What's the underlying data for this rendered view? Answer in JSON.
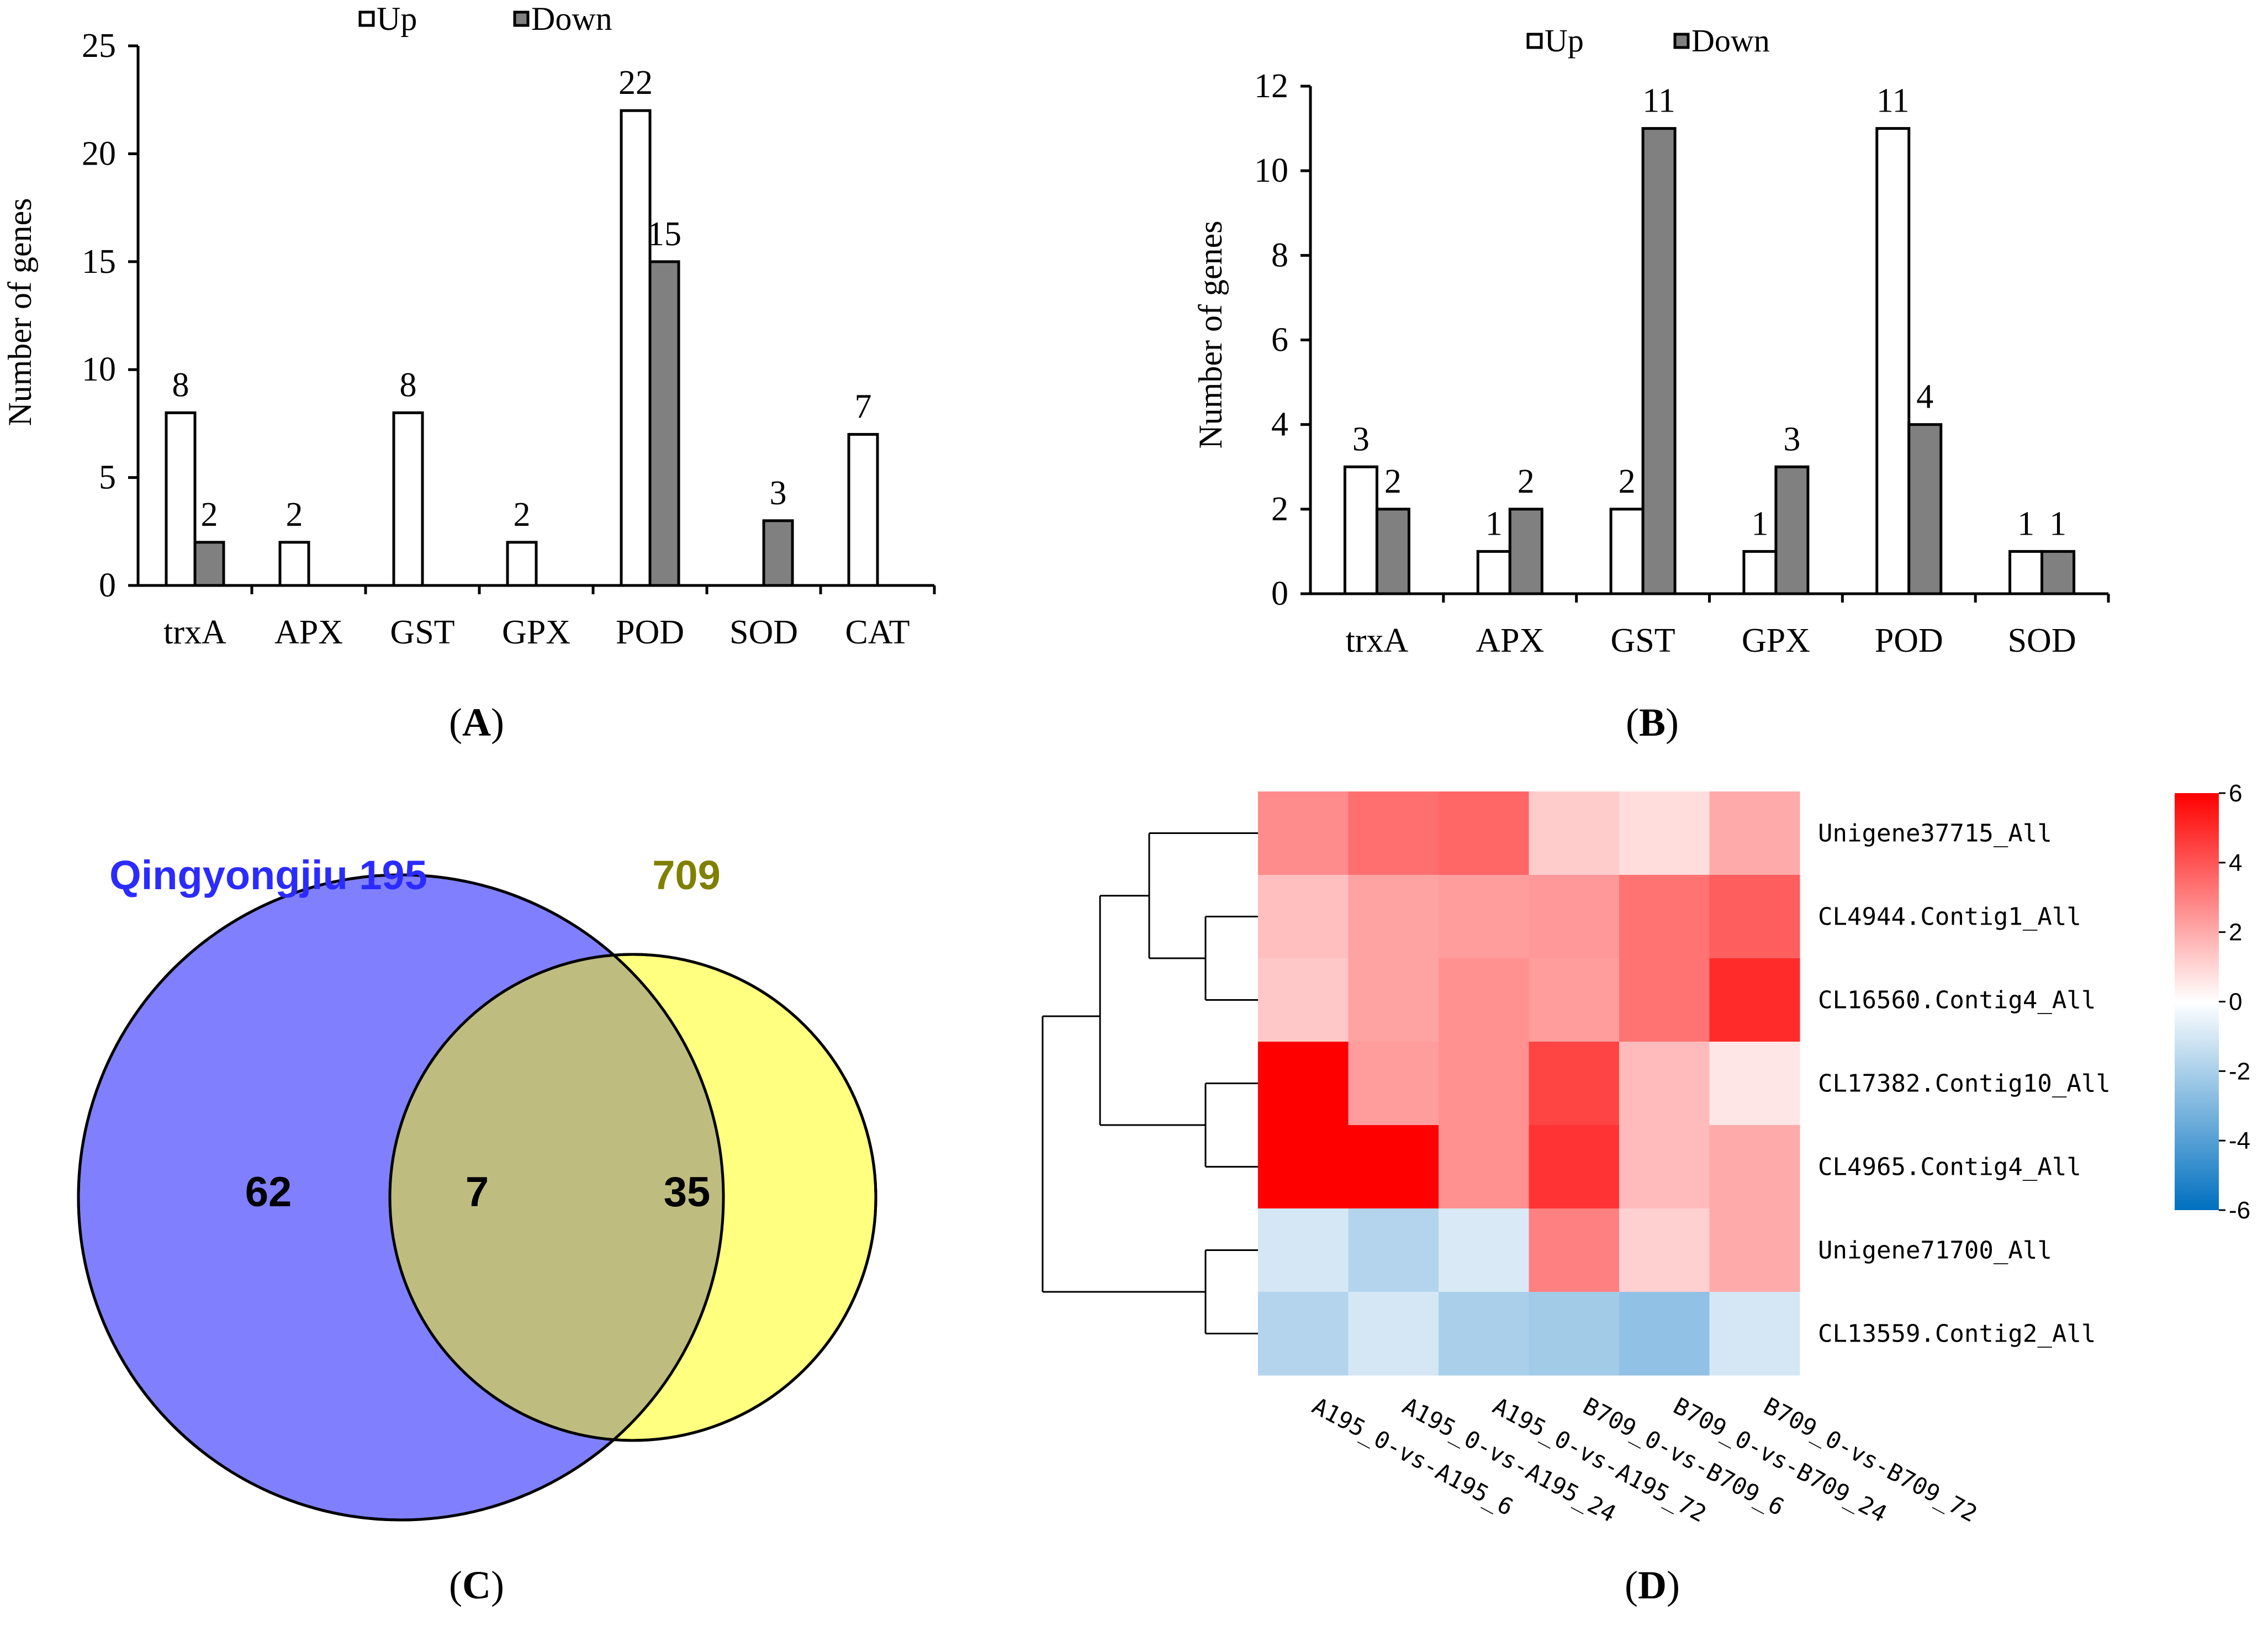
{
  "colors": {
    "up_fill": "#ffffff",
    "down_fill": "#808080",
    "bar_stroke": "#000000",
    "venn_left": "#8080ff",
    "venn_right": "#ffff80",
    "venn_overlap": "#bebd7f",
    "venn_left_title": "#2b2bff",
    "venn_right_title": "#808000",
    "heat_high": "#ff0000",
    "heat_mid": "#ffffff",
    "heat_low": "#0070c0"
  },
  "panels": {
    "A": {
      "label_open": "(",
      "label_letter": "A",
      "label_close": ")"
    },
    "B": {
      "label_open": "(",
      "label_letter": "B",
      "label_close": ")"
    },
    "C": {
      "label_open": "(",
      "label_letter": "C",
      "label_close": ")"
    },
    "D": {
      "label_open": "(",
      "label_letter": "D",
      "label_close": ")"
    }
  },
  "chart_data": [
    {
      "type": "bar",
      "panel": "A",
      "ylabel": "Number of genes",
      "ylim": [
        0,
        25
      ],
      "yticks": [
        0,
        5,
        10,
        15,
        20,
        25
      ],
      "legend": {
        "position": "top",
        "entries": [
          "Up",
          "Down"
        ]
      },
      "categories": [
        "trxA",
        "APX",
        "GST",
        "GPX",
        "POD",
        "SOD",
        "CAT"
      ],
      "series": [
        {
          "name": "Up",
          "values": [
            8,
            2,
            8,
            2,
            22,
            0,
            7
          ]
        },
        {
          "name": "Down",
          "values": [
            2,
            0,
            0,
            0,
            15,
            3,
            0
          ]
        }
      ]
    },
    {
      "type": "bar",
      "panel": "B",
      "ylabel": "Number of genes",
      "ylim": [
        0,
        12
      ],
      "yticks": [
        0,
        2,
        4,
        6,
        8,
        10,
        12
      ],
      "legend": {
        "position": "top",
        "entries": [
          "Up",
          "Down"
        ]
      },
      "categories": [
        "trxA",
        "APX",
        "GST",
        "GPX",
        "POD",
        "SOD"
      ],
      "series": [
        {
          "name": "Up",
          "values": [
            3,
            1,
            2,
            1,
            11,
            1
          ]
        },
        {
          "name": "Down",
          "values": [
            2,
            2,
            11,
            3,
            4,
            1
          ]
        }
      ]
    },
    {
      "type": "venn",
      "panel": "C",
      "sets": [
        {
          "name": "Qingyongjiu 195",
          "only": 62
        },
        {
          "name": "709",
          "only": 35
        }
      ],
      "intersection": 7
    },
    {
      "type": "heatmap",
      "panel": "D",
      "rows": [
        "Unigene37715_All",
        "CL4944.Contig1_All",
        "CL16560.Contig4_All",
        "CL17382.Contig10_All",
        "CL4965.Contig4_All",
        "Unigene71700_All",
        "CL13559.Contig2_All"
      ],
      "columns": [
        "A195_0-vs-A195_6",
        "A195_0-vs-A195_24",
        "A195_0-vs-A195_72",
        "B709_0-vs-B709_6",
        "B709_0-vs-B709_24",
        "B709_0-vs-B709_72"
      ],
      "values": [
        [
          2.7,
          3.4,
          3.6,
          1.2,
          0.8,
          2.0
        ],
        [
          1.5,
          2.2,
          2.3,
          2.4,
          3.3,
          3.8
        ],
        [
          1.3,
          2.2,
          2.6,
          2.3,
          3.3,
          5.0
        ],
        [
          6.0,
          2.3,
          2.6,
          4.4,
          1.6,
          0.6
        ],
        [
          6.0,
          6.0,
          2.6,
          4.8,
          1.6,
          2.0
        ],
        [
          -1.0,
          -1.8,
          -0.9,
          3.0,
          1.1,
          2.0
        ],
        [
          -1.8,
          -1.0,
          -2.0,
          -2.2,
          -2.6,
          -1.0
        ]
      ],
      "colorbar": {
        "min": -6,
        "max": 6,
        "ticks": [
          6,
          4,
          2,
          0,
          -2,
          -4,
          -6
        ]
      }
    }
  ]
}
